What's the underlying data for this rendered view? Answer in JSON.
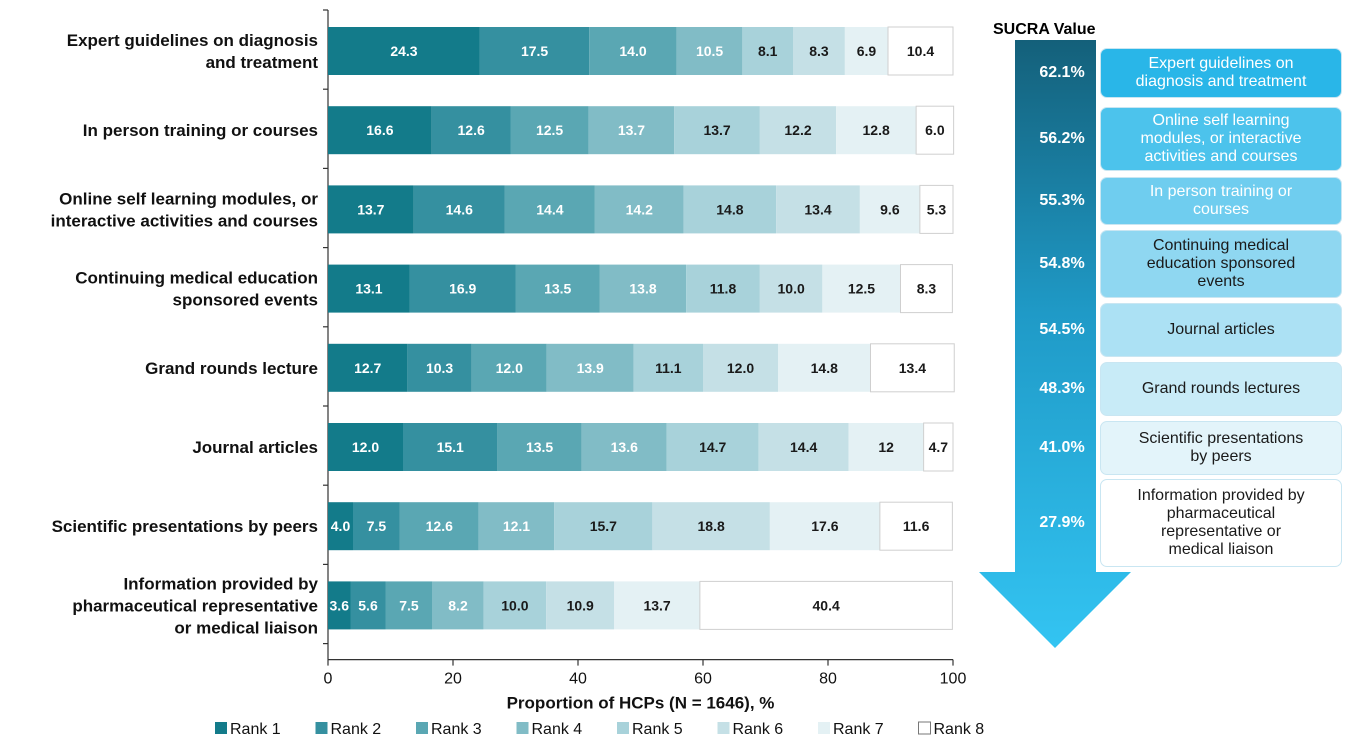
{
  "chart_data": {
    "type": "bar",
    "orientation": "horizontal",
    "stacked": true,
    "categories": [
      "Expert guidelines on diagnosis and treatment",
      "In person training or courses",
      "Online self learning modules, or interactive activities and courses",
      "Continuing medical education sponsored events",
      "Grand rounds lecture",
      "Journal articles",
      "Scientific presentations by peers",
      "Information provided by pharmaceutical representative or medical liaison"
    ],
    "category_lines": [
      [
        "Expert guidelines on diagnosis",
        "and treatment"
      ],
      [
        "In person training or courses"
      ],
      [
        "Online self learning modules, or",
        "interactive activities and courses"
      ],
      [
        "Continuing medical education",
        "sponsored events"
      ],
      [
        "Grand rounds lecture"
      ],
      [
        "Journal articles"
      ],
      [
        "Scientific presentations by peers"
      ],
      [
        "Information provided by",
        "pharmaceutical representative",
        "or medical liaison"
      ]
    ],
    "series": [
      {
        "name": "Rank 1",
        "color": "#137b8a",
        "values": [
          24.3,
          16.6,
          13.7,
          13.1,
          12.7,
          12.0,
          4.0,
          3.6
        ]
      },
      {
        "name": "Rank 2",
        "color": "#3590a0",
        "values": [
          17.5,
          12.6,
          14.6,
          16.9,
          10.3,
          15.1,
          7.5,
          5.6
        ]
      },
      {
        "name": "Rank 3",
        "color": "#5aa7b3",
        "values": [
          14.0,
          12.5,
          14.4,
          13.5,
          12.0,
          13.5,
          12.6,
          7.5
        ]
      },
      {
        "name": "Rank 4",
        "color": "#81bcc6",
        "values": [
          10.5,
          13.7,
          14.2,
          13.8,
          13.9,
          13.6,
          12.1,
          8.2
        ]
      },
      {
        "name": "Rank 5",
        "color": "#a8d2da",
        "values": [
          8.1,
          13.7,
          14.8,
          11.8,
          11.1,
          14.7,
          15.7,
          10.0
        ]
      },
      {
        "name": "Rank 6",
        "color": "#c5e0e6",
        "values": [
          8.3,
          12.2,
          13.4,
          10.0,
          12.0,
          14.4,
          18.8,
          10.9
        ]
      },
      {
        "name": "Rank 7",
        "color": "#e4f1f4",
        "values": [
          6.9,
          12.8,
          9.6,
          12.5,
          14.8,
          12.0,
          17.6,
          13.7
        ]
      },
      {
        "name": "Rank 8",
        "color": "#ffffff",
        "values": [
          10.4,
          6.0,
          5.3,
          8.3,
          13.4,
          4.7,
          11.6,
          40.4
        ]
      }
    ],
    "labels": [
      [
        "24.3",
        "17.5",
        "14.0",
        "10.5",
        "8.1",
        "8.3",
        "6.9",
        "10.4"
      ],
      [
        "16.6",
        "12.6",
        "12.5",
        "13.7",
        "13.7",
        "12.2",
        "12.8",
        "6.0"
      ],
      [
        "13.7",
        "14.6",
        "14.4",
        "14.2",
        "14.8",
        "13.4",
        "9.6",
        "5.3"
      ],
      [
        "13.1",
        "16.9",
        "13.5",
        "13.8",
        "11.8",
        "10.0",
        "12.5",
        "8.3"
      ],
      [
        "12.7",
        "10.3",
        "12.0",
        "13.9",
        "11.1",
        "12.0",
        "14.8",
        "13.4"
      ],
      [
        "12.0",
        "15.1",
        "13.5",
        "13.6",
        "14.7",
        "14.4",
        "12",
        "4.7"
      ],
      [
        "4.0",
        "7.5",
        "12.6",
        "12.1",
        "15.7",
        "18.8",
        "17.6",
        "11.6"
      ],
      [
        "3.6",
        "5.6",
        "7.5",
        "8.2",
        "10.0",
        "10.9",
        "13.7",
        "40.4"
      ]
    ],
    "xlabel": "Proportion of HCPs (N = 1646), %",
    "xlim": [
      0,
      100
    ],
    "xticks": [
      "0",
      "20",
      "40",
      "60",
      "80",
      "100"
    ],
    "legend_position": "bottom",
    "grid": false
  },
  "sucra": {
    "title": "SUCRA Value",
    "items": [
      {
        "value": "62.1%",
        "lines": [
          "Expert guidelines on",
          "diagnosis and treatment"
        ],
        "fill": "#29b6e8",
        "text_color": "#ffffff"
      },
      {
        "value": "56.2%",
        "lines": [
          "Online self learning",
          "modules, or interactive",
          "activities and courses"
        ],
        "fill": "#4cc3ec",
        "text_color": "#ffffff"
      },
      {
        "value": "55.3%",
        "lines": [
          "In person training or",
          "courses"
        ],
        "fill": "#6fcdef",
        "text_color": "#ffffff"
      },
      {
        "value": "54.8%",
        "lines": [
          "Continuing medical",
          "education sponsored",
          "events"
        ],
        "fill": "#8fd7f1",
        "text_color": "#1a1a1a"
      },
      {
        "value": "54.5%",
        "lines": [
          "Journal articles"
        ],
        "fill": "#ace1f4",
        "text_color": "#1a1a1a"
      },
      {
        "value": "48.3%",
        "lines": [
          "Grand rounds lectures"
        ],
        "fill": "#c8ebf7",
        "text_color": "#1a1a1a"
      },
      {
        "value": "41.0%",
        "lines": [
          "Scientific presentations",
          "by peers"
        ],
        "fill": "#e3f4fa",
        "text_color": "#1a1a1a"
      },
      {
        "value": "27.9%",
        "lines": [
          "Information provided by",
          "pharmaceutical",
          "representative or",
          "medical liaison"
        ],
        "fill": "#ffffff",
        "text_color": "#1a1a1a"
      }
    ]
  }
}
